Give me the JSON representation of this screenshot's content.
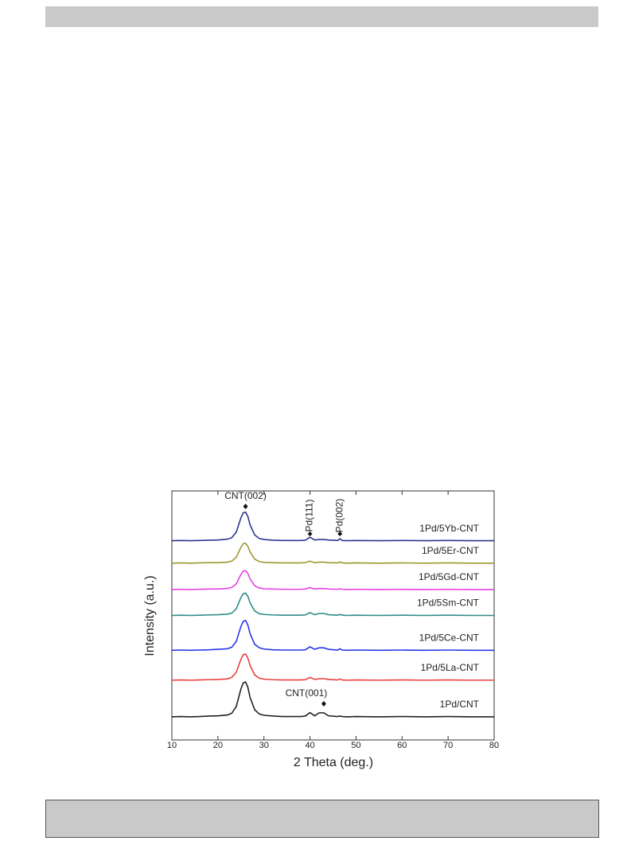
{
  "chart_data": {
    "type": "line",
    "x_label": "2 Theta (deg.)",
    "y_label": "Intensity (a.u.)",
    "xlim": [
      10,
      80
    ],
    "xticks": [
      10,
      20,
      30,
      40,
      50,
      60,
      70,
      80
    ],
    "ylim": [
      0,
      100
    ],
    "x": [
      10,
      12,
      14,
      16,
      18,
      20,
      22,
      23,
      24,
      25,
      25.5,
      26,
      26.5,
      27,
      28,
      29,
      30,
      32,
      34,
      36,
      38,
      39,
      40,
      41,
      42,
      43,
      44,
      46,
      46.5,
      47,
      48,
      50,
      55,
      60,
      65,
      70,
      75,
      80
    ],
    "series": [
      {
        "name": "1Pd/CNT",
        "color": "#222222",
        "values": [
          9.3,
          9.4,
          9.3,
          9.4,
          9.6,
          9.7,
          10,
          10.7,
          13.5,
          20.5,
          22.9,
          23.3,
          21.2,
          17,
          12.1,
          10.4,
          9.9,
          9.6,
          9.4,
          9.4,
          9.4,
          9.6,
          11,
          9.7,
          10.9,
          10.9,
          9.7,
          9.4,
          9.6,
          9.4,
          9.3,
          9.4,
          9.3,
          9.4,
          9.3,
          9.4,
          9.3,
          9.3
        ]
      },
      {
        "name": "1Pd/5La-CNT",
        "color": "#e8413f",
        "values": [
          24,
          24.1,
          24,
          24.1,
          24.2,
          24.3,
          24.5,
          25.1,
          27.2,
          32.4,
          34.2,
          34.5,
          32.9,
          29.8,
          26.1,
          24.8,
          24.4,
          24.2,
          24.1,
          24.1,
          24.1,
          24.2,
          25.1,
          24.3,
          24.6,
          24.6,
          24.3,
          24.1,
          24.5,
          24.1,
          24,
          24.1,
          24,
          24.1,
          24,
          24.1,
          24,
          24
        ]
      },
      {
        "name": "1Pd/5Ce-CNT",
        "color": "#2a35e8",
        "values": [
          36,
          36.1,
          36,
          36.1,
          36.2,
          36.4,
          36.6,
          37.2,
          39.6,
          45.6,
          47.6,
          48,
          46.2,
          42.6,
          38.4,
          37,
          36.5,
          36.2,
          36.1,
          36.1,
          36.1,
          36.2,
          37.4,
          36.4,
          37,
          37,
          36.4,
          36.1,
          36.6,
          36.1,
          36,
          36.1,
          36,
          36.1,
          36,
          36.1,
          36,
          36
        ]
      },
      {
        "name": "1Pd/5Sm-CNT",
        "color": "#2e8b88",
        "values": [
          50,
          50.1,
          50,
          50.1,
          50.2,
          50.3,
          50.5,
          50.9,
          52.7,
          57.2,
          58.7,
          59,
          57.7,
          55,
          51.8,
          50.7,
          50.4,
          50.2,
          50.1,
          50.1,
          50.1,
          50.2,
          51.1,
          50.3,
          50.8,
          50.8,
          50.3,
          50.1,
          50.4,
          50.1,
          50,
          50.1,
          50,
          50.1,
          50,
          50.1,
          50,
          50
        ]
      },
      {
        "name": "1Pd/5Gd-CNT",
        "color": "#e640e6",
        "values": [
          60.4,
          60.5,
          60.4,
          60.5,
          60.6,
          60.6,
          60.8,
          61.2,
          62.7,
          66.5,
          67.8,
          68,
          66.9,
          64.6,
          61.9,
          61,
          60.7,
          60.6,
          60.5,
          60.5,
          60.5,
          60.6,
          61.2,
          60.6,
          60.8,
          60.8,
          60.6,
          60.5,
          60.7,
          60.5,
          60.4,
          60.5,
          60.4,
          60.5,
          60.4,
          60.5,
          60.4,
          60.4
        ]
      },
      {
        "name": "1Pd/5Er-CNT",
        "color": "#9a9a30",
        "values": [
          71,
          71.1,
          71,
          71.1,
          71.2,
          71.2,
          71.4,
          71.8,
          73.4,
          77.4,
          78.8,
          79,
          77.8,
          75.4,
          72.6,
          71.6,
          71.3,
          71.2,
          71.1,
          71.1,
          71.1,
          71.2,
          71.8,
          71.2,
          71.4,
          71.4,
          71.2,
          71.1,
          71.5,
          71.1,
          71,
          71.1,
          71,
          71.1,
          71,
          71.1,
          71,
          71
        ]
      },
      {
        "name": "1Pd/5Yb-CNT",
        "color": "#2e3590",
        "values": [
          80,
          80.1,
          80,
          80.1,
          80.2,
          80.3,
          80.6,
          81.2,
          83.5,
          89.2,
          91.2,
          91.5,
          89.8,
          86.3,
          82.3,
          80.9,
          80.5,
          80.2,
          80.1,
          80.1,
          80.1,
          80.2,
          81.4,
          80.3,
          80.5,
          80.5,
          80.3,
          80.1,
          80.8,
          80.1,
          80,
          80.1,
          80,
          80.1,
          80,
          80.1,
          80,
          80
        ]
      }
    ],
    "annotations": [
      {
        "text": "CNT(002)",
        "x": 26
      },
      {
        "text": "Pd(111)",
        "x": 40
      },
      {
        "text": "Pd(002)",
        "x": 46.5
      },
      {
        "text": "CNT(001)",
        "x": 43
      }
    ]
  }
}
